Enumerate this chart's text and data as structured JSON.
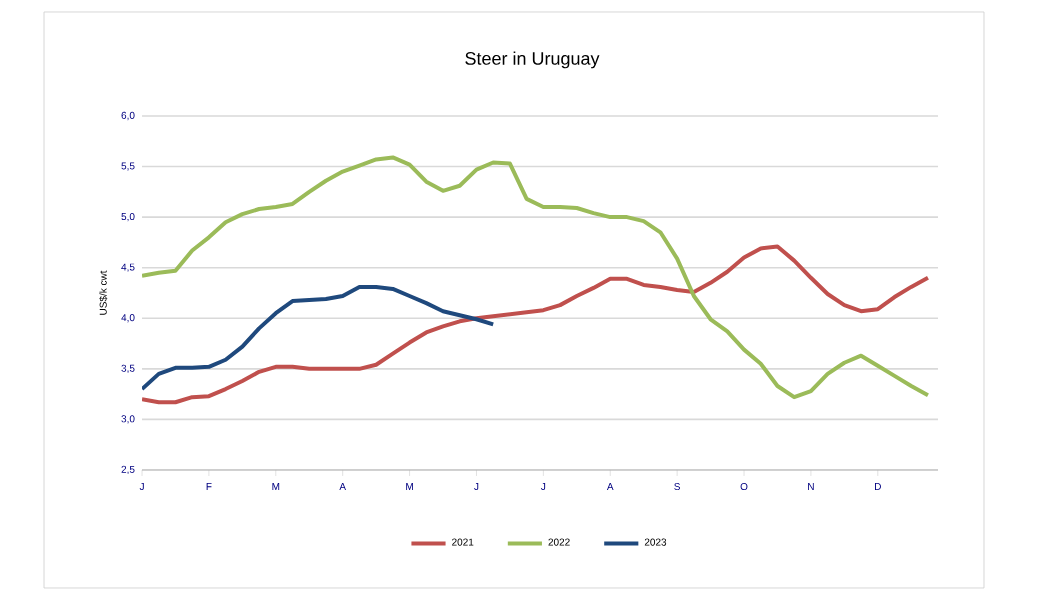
{
  "chart_data": {
    "type": "line",
    "title": "Steer  in Uruguay",
    "ylabel": "US$/k cwt",
    "categories": [
      "J",
      null,
      null,
      null,
      "F",
      null,
      null,
      null,
      "M",
      null,
      null,
      null,
      "A",
      null,
      null,
      null,
      "M",
      null,
      null,
      null,
      "J",
      null,
      null,
      null,
      "J",
      null,
      null,
      null,
      "A",
      null,
      null,
      null,
      "S",
      null,
      null,
      null,
      "O",
      null,
      null,
      null,
      "N",
      null,
      null,
      null,
      "D",
      null,
      null,
      null
    ],
    "ylim": [
      2.5,
      6.0
    ],
    "yticks": [
      {
        "value": 2.5,
        "label": "2,5"
      },
      {
        "value": 3.0,
        "label": "3,0"
      },
      {
        "value": 3.5,
        "label": "3,5"
      },
      {
        "value": 4.0,
        "label": "4,0"
      },
      {
        "value": 4.5,
        "label": "4,5"
      },
      {
        "value": 5.0,
        "label": "5,0"
      },
      {
        "value": 5.5,
        "label": "5,5"
      },
      {
        "value": 6.0,
        "label": "6,0"
      }
    ],
    "grid": "y",
    "legend": "bottom",
    "marker": "none",
    "line_style": "solid",
    "series": [
      {
        "name": "2021",
        "color": "#c0504d",
        "values": [
          3.2,
          3.17,
          3.17,
          3.22,
          3.23,
          3.3,
          3.38,
          3.47,
          3.52,
          3.52,
          3.5,
          3.5,
          3.5,
          3.5,
          3.54,
          3.65,
          3.76,
          3.86,
          3.92,
          3.97,
          4.0,
          4.02,
          4.04,
          4.06,
          4.08,
          4.13,
          4.22,
          4.3,
          4.39,
          4.39,
          4.33,
          4.31,
          4.28,
          4.26,
          4.35,
          4.46,
          4.6,
          4.69,
          4.71,
          4.57,
          4.4,
          4.24,
          4.13,
          4.07,
          4.09,
          4.21,
          4.31,
          4.4
        ]
      },
      {
        "name": "2022",
        "color": "#9bbb59",
        "values": [
          4.42,
          4.45,
          4.47,
          4.67,
          4.8,
          4.95,
          5.03,
          5.08,
          5.1,
          5.13,
          5.25,
          5.36,
          5.45,
          5.51,
          5.57,
          5.59,
          5.52,
          5.35,
          5.26,
          5.31,
          5.47,
          5.54,
          5.53,
          5.18,
          5.1,
          5.1,
          5.09,
          5.04,
          5.0,
          5.0,
          4.96,
          4.85,
          4.59,
          4.22,
          3.99,
          3.87,
          3.69,
          3.55,
          3.33,
          3.22,
          3.28,
          3.45,
          3.56,
          3.63,
          3.53,
          3.43,
          3.33,
          3.24
        ]
      },
      {
        "name": "2023",
        "color": "#1f497d",
        "values": [
          3.3,
          3.45,
          3.51,
          3.51,
          3.52,
          3.59,
          3.72,
          3.9,
          4.05,
          4.17,
          4.18,
          4.19,
          4.22,
          4.31,
          4.31,
          4.29,
          4.22,
          4.15,
          4.07,
          4.03,
          3.99,
          3.94,
          null,
          null,
          null,
          null,
          null,
          null,
          null,
          null,
          null,
          null,
          null,
          null,
          null,
          null,
          null,
          null,
          null,
          null,
          null,
          null,
          null,
          null,
          null,
          null,
          null,
          null
        ]
      }
    ]
  }
}
